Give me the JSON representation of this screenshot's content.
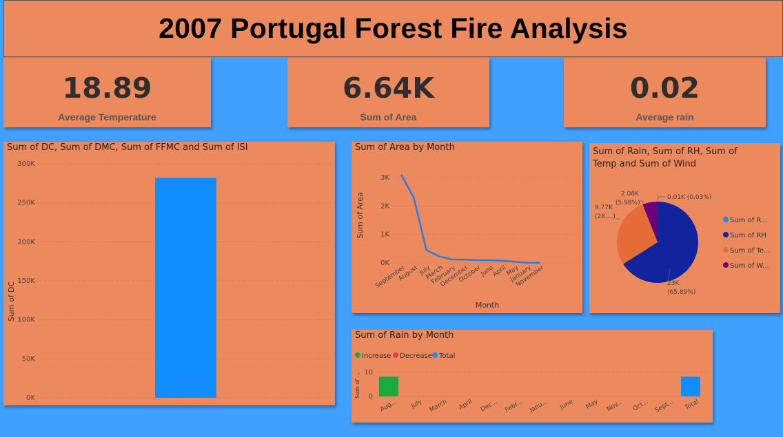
{
  "title": "2007 Portugal Forest Fire Analysis",
  "cards": [
    {
      "value": "18.89",
      "label": "Average Temperature"
    },
    {
      "value": "6.64K",
      "label": "Sum of Area"
    },
    {
      "value": "0.02",
      "label": "Average rain"
    }
  ],
  "colors": {
    "background": "#3fa0ff",
    "panel": "#ec8a5e",
    "bar": "#118dff",
    "line": "#1f7fe8"
  },
  "chart_data": [
    {
      "type": "bar",
      "title": "Sum of DC, Sum of DMC, Sum of FFMC and Sum of ISI",
      "ylabel": "Sum of DC",
      "y_tick_labels": [
        "300K",
        "250K",
        "200K",
        "150K",
        "100K",
        "50K",
        "0K"
      ],
      "ylim": [
        0,
        300000
      ],
      "values": [
        282000
      ],
      "grid": true
    },
    {
      "type": "line",
      "title": "Sum of Area by Month",
      "xlabel": "Month",
      "ylabel": "Sum of Area",
      "categories": [
        "September",
        "August",
        "July",
        "March",
        "February",
        "December",
        "October",
        "June",
        "April",
        "May",
        "January",
        "November"
      ],
      "values": [
        3100,
        2300,
        450,
        230,
        120,
        115,
        100,
        95,
        75,
        40,
        5,
        2
      ],
      "y_tick_labels": [
        "3K",
        "2K",
        "1K",
        "0K"
      ],
      "ylim": [
        0,
        3000
      ],
      "grid": true
    },
    {
      "type": "pie",
      "title_line1": "Sum of Rain, Sum of RH, Sum of",
      "title_line2": "Temp and Sum of Wind",
      "slices": [
        {
          "name": "Sum of R...",
          "value": 0.01,
          "color": "#118dff",
          "label_line1": "0.01K (0.03%)",
          "label_line2": ""
        },
        {
          "name": "Sum of RH",
          "value": 23,
          "color": "#12239e",
          "label_line1": "23K",
          "label_line2": "(65.89%)"
        },
        {
          "name": "Sum of Te...",
          "value": 9.77,
          "color": "#e66c37",
          "label_line1": "9.77K",
          "label_line2": "(28....)"
        },
        {
          "name": "Sum of W...",
          "value": 2.08,
          "color": "#6b007b",
          "label_line1": "2.08K",
          "label_line2": "(5.98%)"
        }
      ],
      "legend": "right"
    },
    {
      "type": "bar",
      "subtype": "waterfall",
      "title": "Sum of Rain by Month",
      "ylabel": "Sum of ...",
      "legend": [
        {
          "label": "Increase",
          "color": "#1aab40"
        },
        {
          "label": "Decrease",
          "color": "#d64554"
        },
        {
          "label": "Total",
          "color": "#118dff"
        }
      ],
      "categories": [
        "Aug...",
        "July",
        "March",
        "April",
        "Dec...",
        "Febr...",
        "Janu...",
        "June",
        "May",
        "Nov...",
        "Oct...",
        "Sept...",
        "Total"
      ],
      "values": [
        8.2,
        0,
        0,
        0,
        0,
        0,
        0,
        0,
        0,
        0,
        0,
        0,
        8.2
      ],
      "y_tick_labels": [
        "10",
        "0"
      ],
      "ylim": [
        0,
        12
      ]
    }
  ]
}
